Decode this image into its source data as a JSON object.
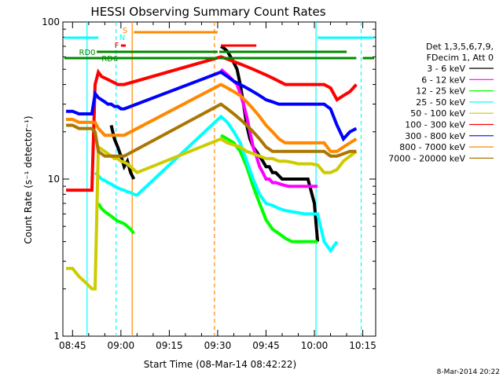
{
  "chart_data": {
    "type": "line",
    "title": "HESSI Observing Summary Count Rates",
    "xlabel": "Start Time (08-Mar-14 08:42:22)",
    "ylabel": "Count Rate (s⁻¹ detector⁻¹)",
    "yscale": "log",
    "ylim": [
      1,
      100
    ],
    "xlim_minutes": [
      -18,
      79
    ],
    "x_ticks": [
      {
        "t": -15,
        "label": "08:45"
      },
      {
        "t": 0,
        "label": "09:00"
      },
      {
        "t": 15,
        "label": "09:15"
      },
      {
        "t": 30,
        "label": "09:30"
      },
      {
        "t": 45,
        "label": "09:45"
      },
      {
        "t": 60,
        "label": "10:00"
      },
      {
        "t": 75,
        "label": "10:15"
      }
    ],
    "y_ticks": [
      {
        "v": 1,
        "label": "1"
      },
      {
        "v": 10,
        "label": "10"
      },
      {
        "v": 100,
        "label": "100"
      }
    ],
    "legend": {
      "header1": "Det 1,3,5,6,7,9,",
      "header2": "FDecim 1, Att 0",
      "placement": "right"
    },
    "series": [
      {
        "name": "3 - 6 keV",
        "color": "#000000",
        "x": [
          -8.5,
          -7,
          -6,
          -5,
          -4,
          -3,
          -2,
          -1,
          0,
          1,
          2,
          3,
          4,
          4.5
        ],
        "y": [
          null,
          null,
          null,
          null,
          null,
          22,
          18,
          16,
          14,
          12,
          13,
          11,
          10,
          null
        ],
        "x2": [
          31,
          32,
          33,
          34,
          35,
          36,
          37,
          38,
          39,
          40,
          41,
          42,
          43,
          44,
          45,
          46,
          47,
          48,
          50,
          52,
          54,
          56,
          58,
          60,
          61
        ],
        "y2": [
          70,
          68,
          65,
          60,
          55,
          50,
          40,
          30,
          22,
          18,
          16,
          15,
          14,
          13,
          12,
          12,
          11,
          11,
          10,
          10,
          10,
          10,
          10,
          7,
          4
        ]
      },
      {
        "name": "6 - 12 keV",
        "color": "#ff00ff",
        "x": [
          31,
          32,
          33,
          34,
          35,
          36,
          37,
          38,
          39,
          40,
          41,
          42,
          43,
          44,
          45,
          46,
          47,
          48,
          50,
          52,
          54,
          56,
          58,
          60,
          61
        ],
        "y": [
          50,
          48,
          46,
          44,
          42,
          40,
          35,
          30,
          25,
          20,
          16,
          14,
          12,
          11,
          10,
          10,
          9.5,
          9.5,
          9.2,
          9,
          9,
          9,
          9,
          9,
          9
        ]
      },
      {
        "name": "12 - 25 keV",
        "color": "#00ff00",
        "x": [
          -17,
          -14,
          -11,
          -9,
          -8,
          -7,
          -6,
          -5,
          -4,
          -3,
          -2,
          -1,
          0,
          1,
          2,
          3,
          4,
          5,
          31,
          33,
          35,
          37,
          39,
          41,
          43,
          45,
          47,
          49,
          51,
          53,
          55,
          57,
          59,
          61
        ],
        "y": [
          null,
          null,
          null,
          null,
          null,
          7,
          6.5,
          6.2,
          6,
          5.8,
          5.6,
          5.4,
          5.3,
          5.2,
          5,
          4.8,
          4.5,
          null,
          19,
          18,
          17,
          15,
          12,
          9,
          7,
          5.5,
          4.8,
          4.5,
          4.2,
          4,
          4,
          4,
          4,
          4
        ]
      },
      {
        "name": "25 - 50 keV",
        "color": "#00ffff",
        "x": [
          -8,
          -7,
          -6,
          -5,
          -4,
          -3,
          -2,
          -1,
          0,
          1,
          2,
          3,
          4,
          5,
          31,
          33,
          35,
          37,
          39,
          41,
          43,
          45,
          47,
          49,
          51,
          53,
          55,
          57,
          59,
          61,
          63,
          65,
          67
        ],
        "y": [
          11,
          10.5,
          10,
          9.8,
          9.5,
          9.3,
          9,
          8.8,
          8.6,
          8.5,
          8.3,
          8.2,
          8,
          7.9,
          25,
          23,
          20,
          17,
          13,
          10,
          8,
          7,
          6.8,
          6.5,
          6.3,
          6.2,
          6.1,
          6,
          6,
          6,
          4,
          3.5,
          4
        ]
      },
      {
        "name": "50 - 100 keV",
        "color": "#cccc00",
        "x": [
          -17,
          -15,
          -13,
          -11,
          -9,
          -8,
          -7,
          -6,
          -5,
          -4,
          -3,
          -2,
          -1,
          0,
          1,
          2,
          3,
          4,
          5,
          31,
          33,
          35,
          37,
          39,
          41,
          43,
          45,
          47,
          49,
          51,
          53,
          55,
          57,
          59,
          61,
          63,
          65,
          67,
          69,
          71,
          73
        ],
        "y": [
          2.7,
          2.7,
          2.4,
          2.2,
          2,
          2,
          16,
          15.5,
          15,
          14.5,
          14,
          13.5,
          13.5,
          13,
          12.8,
          12.5,
          12,
          11.5,
          11,
          18,
          17,
          16.5,
          16,
          15,
          14.5,
          14,
          13.5,
          13.5,
          13,
          13,
          12.8,
          12.5,
          12.5,
          12.5,
          12.3,
          11,
          11,
          11.5,
          13,
          14,
          15
        ]
      },
      {
        "name": "100 - 300 keV",
        "color": "#ff0000",
        "x": [
          -17,
          -15,
          -13,
          -11,
          -9,
          -8,
          -7,
          -6,
          -5,
          -4,
          -3,
          -2,
          -1,
          0,
          1,
          31,
          33,
          35,
          37,
          39,
          41,
          43,
          45,
          47,
          49,
          51,
          53,
          55,
          57,
          59,
          61,
          63,
          65,
          67,
          69,
          71,
          73
        ],
        "y": [
          8.5,
          8.5,
          8.5,
          8.5,
          8.5,
          40,
          48,
          45,
          44,
          43,
          42,
          41,
          40,
          40,
          40,
          60,
          58,
          56,
          54,
          52,
          50,
          48,
          46,
          44,
          42,
          40,
          40,
          40,
          40,
          40,
          40,
          40,
          38,
          32,
          34,
          36,
          40
        ]
      },
      {
        "name": "300 - 800 keV",
        "color": "#0000ff",
        "x": [
          -17,
          -15,
          -13,
          -11,
          -9,
          -8,
          -7,
          -6,
          -5,
          -4,
          -3,
          -2,
          -1,
          0,
          1,
          31,
          33,
          35,
          37,
          39,
          41,
          43,
          45,
          47,
          49,
          51,
          53,
          55,
          57,
          59,
          61,
          63,
          65,
          67,
          69,
          71,
          73
        ],
        "y": [
          27,
          27,
          26,
          26,
          26,
          35,
          33,
          32,
          31,
          30,
          30,
          29,
          29,
          28,
          28,
          48,
          45,
          42,
          40,
          38,
          36,
          34,
          32,
          31,
          30,
          30,
          30,
          30,
          30,
          30,
          30,
          30,
          28,
          22,
          18,
          20,
          21
        ]
      },
      {
        "name": "800 - 7000 keV",
        "color": "#ff8800",
        "x": [
          -17,
          -15,
          -13,
          -11,
          -9,
          -8,
          -7,
          -6,
          -5,
          -4,
          -3,
          -2,
          -1,
          0,
          1,
          31,
          33,
          35,
          37,
          39,
          41,
          43,
          45,
          47,
          49,
          51,
          53,
          55,
          57,
          59,
          61,
          63,
          65,
          67,
          69,
          71,
          73
        ],
        "y": [
          24,
          24,
          23,
          23,
          23,
          23,
          21,
          20,
          19,
          19,
          19,
          19,
          19,
          19,
          19,
          40,
          38,
          36,
          34,
          31,
          28,
          25,
          22,
          20,
          18,
          17,
          17,
          17,
          17,
          17,
          17,
          17,
          15,
          15,
          16,
          17,
          18
        ]
      },
      {
        "name": "7000 - 20000 keV",
        "color": "#aa7700",
        "x": [
          -17,
          -15,
          -13,
          -11,
          -9,
          -8,
          -7,
          -6,
          -5,
          -4,
          -3,
          -2,
          -1,
          0,
          1,
          31,
          33,
          35,
          37,
          39,
          41,
          43,
          45,
          47,
          49,
          51,
          53,
          55,
          57,
          59,
          61,
          63,
          65,
          67,
          69,
          71,
          73
        ],
        "y": [
          22,
          22,
          21,
          21,
          21,
          20,
          15,
          14.5,
          14,
          14,
          14,
          14,
          14,
          14,
          14,
          30,
          28,
          26,
          24,
          22,
          20,
          18,
          16,
          15,
          15,
          15,
          15,
          15,
          15,
          15,
          15,
          15,
          14,
          14,
          14.5,
          15,
          15
        ]
      }
    ],
    "flags": [
      {
        "label": "RD0",
        "color": "#008800"
      },
      {
        "label": "RD6",
        "color": "#008800"
      },
      {
        "label": "S",
        "color": "#ff8800"
      },
      {
        "label": "N",
        "color": "#00ffff"
      },
      {
        "label": "F",
        "color": "#ff0000"
      }
    ],
    "footer_date": "8-Mar-2014 20:22"
  }
}
